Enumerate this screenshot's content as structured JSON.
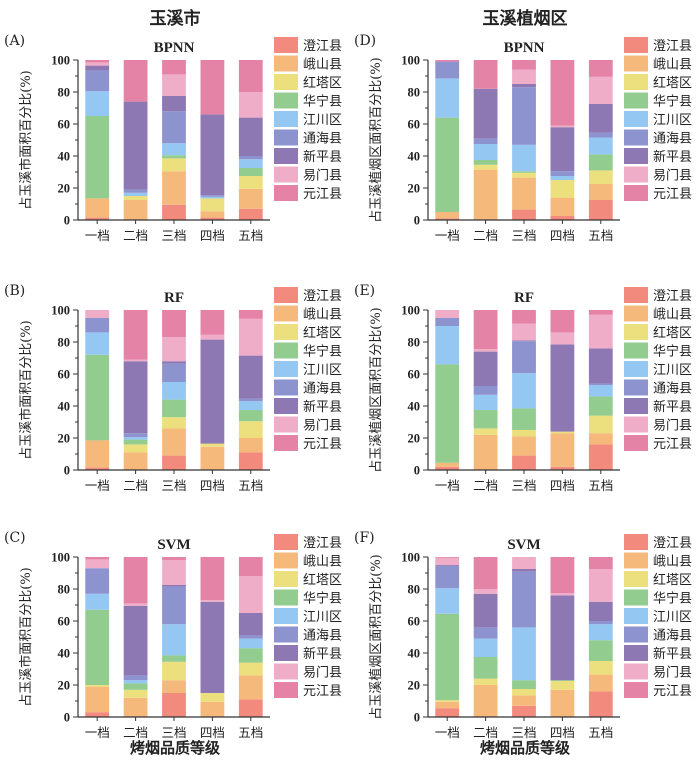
{
  "column_titles": [
    "玉溪市",
    "玉溪植烟区"
  ],
  "x_axis_title": "烤烟品质等级",
  "chart_data": [
    {
      "panel": "(A)",
      "type": "bar",
      "stacked": true,
      "title": "BPNN",
      "xlabel": "",
      "ylabel": "占玉溪市面积百分比(%)",
      "ylim": [
        0,
        100
      ],
      "yticks": [
        0,
        20,
        40,
        60,
        80,
        100
      ],
      "categories": [
        "一档",
        "二档",
        "三档",
        "四档",
        "五档"
      ],
      "legend_position": "right",
      "series": [
        {
          "name": "澄江县",
          "color": "#f28a7e",
          "values": [
            1.5,
            0,
            9.5,
            1.5,
            7
          ]
        },
        {
          "name": "峨山县",
          "color": "#f6b97c",
          "values": [
            12,
            12.5,
            21,
            4,
            12.5
          ]
        },
        {
          "name": "红塔区",
          "color": "#ece07e",
          "values": [
            0,
            2.5,
            8,
            8,
            8
          ]
        },
        {
          "name": "华宁县",
          "color": "#92cc8f",
          "values": [
            51.5,
            0,
            2,
            0,
            5
          ]
        },
        {
          "name": "江川区",
          "color": "#95c7f3",
          "values": [
            15.5,
            2,
            7.5,
            1,
            5.5
          ]
        },
        {
          "name": "通海县",
          "color": "#8d93cf",
          "values": [
            13,
            2,
            20,
            1,
            2
          ]
        },
        {
          "name": "新平县",
          "color": "#8e78b4",
          "values": [
            3,
            55,
            9.5,
            50.5,
            24
          ]
        },
        {
          "name": "易门县",
          "color": "#efadc7",
          "values": [
            2,
            0,
            13.5,
            0,
            16
          ]
        },
        {
          "name": "元江县",
          "color": "#e583a7",
          "values": [
            1.5,
            26,
            9,
            34,
            20
          ]
        }
      ]
    },
    {
      "panel": "(D)",
      "type": "bar",
      "stacked": true,
      "title": "BPNN",
      "xlabel": "",
      "ylabel": "占玉溪植烟区面积百分比(%)",
      "ylim": [
        0,
        100
      ],
      "yticks": [
        0,
        20,
        40,
        60,
        80,
        100
      ],
      "categories": [
        "一档",
        "二档",
        "三档",
        "四档",
        "五档"
      ],
      "legend_position": "right",
      "series": [
        {
          "name": "澄江县",
          "color": "#f28a7e",
          "values": [
            1,
            0,
            6.5,
            2.5,
            12.5
          ]
        },
        {
          "name": "峨山县",
          "color": "#f6b97c",
          "values": [
            4,
            31.5,
            20,
            11.5,
            10
          ]
        },
        {
          "name": "红塔区",
          "color": "#ece07e",
          "values": [
            0,
            3,
            3,
            11,
            8.5
          ]
        },
        {
          "name": "华宁县",
          "color": "#92cc8f",
          "values": [
            59,
            3,
            1,
            0,
            10
          ]
        },
        {
          "name": "江川区",
          "color": "#95c7f3",
          "values": [
            24.5,
            10,
            16.5,
            2.5,
            10.5
          ]
        },
        {
          "name": "通海县",
          "color": "#8d93cf",
          "values": [
            10.5,
            3.5,
            36,
            3,
            3
          ]
        },
        {
          "name": "新平县",
          "color": "#8e78b4",
          "values": [
            0,
            31,
            2,
            27.5,
            18
          ]
        },
        {
          "name": "易门县",
          "color": "#efadc7",
          "values": [
            0,
            0,
            9,
            1,
            17
          ]
        },
        {
          "name": "元江县",
          "color": "#e583a7",
          "values": [
            1,
            18,
            6,
            41,
            10.5
          ]
        }
      ]
    },
    {
      "panel": "(B)",
      "type": "bar",
      "stacked": true,
      "title": "RF",
      "xlabel": "",
      "ylabel": "占玉溪市面积百分比(%)",
      "ylim": [
        0,
        100
      ],
      "yticks": [
        0,
        20,
        40,
        60,
        80,
        100
      ],
      "categories": [
        "一档",
        "二档",
        "三档",
        "四档",
        "五档"
      ],
      "legend_position": "right",
      "series": [
        {
          "name": "澄江县",
          "color": "#f28a7e",
          "values": [
            1.5,
            0,
            9,
            0,
            11
          ]
        },
        {
          "name": "峨山县",
          "color": "#f6b97c",
          "values": [
            17,
            11,
            17,
            14.5,
            9
          ]
        },
        {
          "name": "红塔区",
          "color": "#ece07e",
          "values": [
            0,
            5,
            7,
            2,
            10.5
          ]
        },
        {
          "name": "华宁县",
          "color": "#92cc8f",
          "values": [
            53.5,
            3,
            11,
            0,
            7
          ]
        },
        {
          "name": "江川区",
          "color": "#95c7f3",
          "values": [
            14,
            1.5,
            11,
            0,
            5.5
          ]
        },
        {
          "name": "通海县",
          "color": "#8d93cf",
          "values": [
            9,
            2.5,
            11.5,
            0,
            1.5
          ]
        },
        {
          "name": "新平县",
          "color": "#8e78b4",
          "values": [
            0,
            45,
            1.5,
            65,
            27
          ]
        },
        {
          "name": "易门县",
          "color": "#efadc7",
          "values": [
            5,
            1,
            15,
            3,
            23
          ]
        },
        {
          "name": "元江县",
          "color": "#e583a7",
          "values": [
            0,
            31,
            17,
            15.5,
            5.5
          ]
        }
      ]
    },
    {
      "panel": "(E)",
      "type": "bar",
      "stacked": true,
      "title": "RF",
      "xlabel": "",
      "ylabel": "占玉溪植烟区面积百分比(%)",
      "ylim": [
        0,
        100
      ],
      "yticks": [
        0,
        20,
        40,
        60,
        80,
        100
      ],
      "categories": [
        "一档",
        "二档",
        "三档",
        "四档",
        "五档"
      ],
      "legend_position": "right",
      "series": [
        {
          "name": "澄江县",
          "color": "#f28a7e",
          "values": [
            2,
            0,
            9,
            2,
            16
          ]
        },
        {
          "name": "峨山县",
          "color": "#f6b97c",
          "values": [
            2.5,
            22,
            12,
            21,
            7
          ]
        },
        {
          "name": "红塔区",
          "color": "#ece07e",
          "values": [
            0,
            4,
            4,
            1,
            11
          ]
        },
        {
          "name": "华宁县",
          "color": "#92cc8f",
          "values": [
            61.5,
            11.5,
            13.5,
            0,
            12
          ]
        },
        {
          "name": "江川区",
          "color": "#95c7f3",
          "values": [
            24,
            9.5,
            22,
            0,
            7
          ]
        },
        {
          "name": "通海县",
          "color": "#8d93cf",
          "values": [
            5,
            5.5,
            20,
            0,
            1
          ]
        },
        {
          "name": "新平县",
          "color": "#8e78b4",
          "values": [
            0,
            21.5,
            0.5,
            54.5,
            22
          ]
        },
        {
          "name": "易门县",
          "color": "#efadc7",
          "values": [
            5,
            1.5,
            10.5,
            7.5,
            21
          ]
        },
        {
          "name": "元江县",
          "color": "#e583a7",
          "values": [
            0,
            24.5,
            8.5,
            14,
            3
          ]
        }
      ]
    },
    {
      "panel": "(C)",
      "type": "bar",
      "stacked": true,
      "title": "SVM",
      "xlabel": "烤烟品质等级",
      "ylabel": "占玉溪市面积百分比(%)",
      "ylim": [
        0,
        100
      ],
      "yticks": [
        0,
        20,
        40,
        60,
        80,
        100
      ],
      "categories": [
        "一档",
        "二档",
        "三档",
        "四档",
        "五档"
      ],
      "legend_position": "right",
      "series": [
        {
          "name": "澄江县",
          "color": "#f28a7e",
          "values": [
            3,
            0,
            15,
            0,
            11
          ]
        },
        {
          "name": "峨山县",
          "color": "#f6b97c",
          "values": [
            16,
            12,
            8,
            9.5,
            15
          ]
        },
        {
          "name": "红塔区",
          "color": "#ece07e",
          "values": [
            1,
            5,
            11.5,
            5.5,
            8
          ]
        },
        {
          "name": "华宁县",
          "color": "#92cc8f",
          "values": [
            47,
            4,
            4,
            0,
            9
          ]
        },
        {
          "name": "江川区",
          "color": "#95c7f3",
          "values": [
            10,
            2,
            19.5,
            0,
            6
          ]
        },
        {
          "name": "通海县",
          "color": "#8d93cf",
          "values": [
            16,
            3,
            23.5,
            0,
            2
          ]
        },
        {
          "name": "新平县",
          "color": "#8e78b4",
          "values": [
            0,
            43.5,
            1,
            57,
            14
          ]
        },
        {
          "name": "易门县",
          "color": "#efadc7",
          "values": [
            5.5,
            1.5,
            15.5,
            1,
            23
          ]
        },
        {
          "name": "元江县",
          "color": "#e583a7",
          "values": [
            1.5,
            29,
            2,
            27,
            12
          ]
        }
      ]
    },
    {
      "panel": "(F)",
      "type": "bar",
      "stacked": true,
      "title": "SVM",
      "xlabel": "烤烟品质等级",
      "ylabel": "占玉溪植烟区面积百分比(%)",
      "ylim": [
        0,
        100
      ],
      "yticks": [
        0,
        20,
        40,
        60,
        80,
        100
      ],
      "categories": [
        "一档",
        "二档",
        "三档",
        "四档",
        "五档"
      ],
      "legend_position": "right",
      "series": [
        {
          "name": "澄江县",
          "color": "#f28a7e",
          "values": [
            5.5,
            0,
            7,
            0,
            16
          ]
        },
        {
          "name": "峨山县",
          "color": "#f6b97c",
          "values": [
            4,
            20,
            6.5,
            17,
            10.5
          ]
        },
        {
          "name": "红塔区",
          "color": "#ece07e",
          "values": [
            1,
            4,
            4,
            5.5,
            8.5
          ]
        },
        {
          "name": "华宁县",
          "color": "#92cc8f",
          "values": [
            54,
            13.5,
            5.5,
            0.5,
            13
          ]
        },
        {
          "name": "江川区",
          "color": "#95c7f3",
          "values": [
            16,
            11.5,
            33,
            0,
            10
          ]
        },
        {
          "name": "通海县",
          "color": "#8d93cf",
          "values": [
            14,
            7,
            35,
            0,
            2
          ]
        },
        {
          "name": "新平县",
          "color": "#8e78b4",
          "values": [
            0.5,
            21,
            1.5,
            53,
            12
          ]
        },
        {
          "name": "易门县",
          "color": "#efadc7",
          "values": [
            4.5,
            3,
            7.5,
            1.5,
            20.5
          ]
        },
        {
          "name": "元江县",
          "color": "#e583a7",
          "values": [
            0.5,
            20,
            0,
            22.5,
            7.5
          ]
        }
      ]
    }
  ]
}
